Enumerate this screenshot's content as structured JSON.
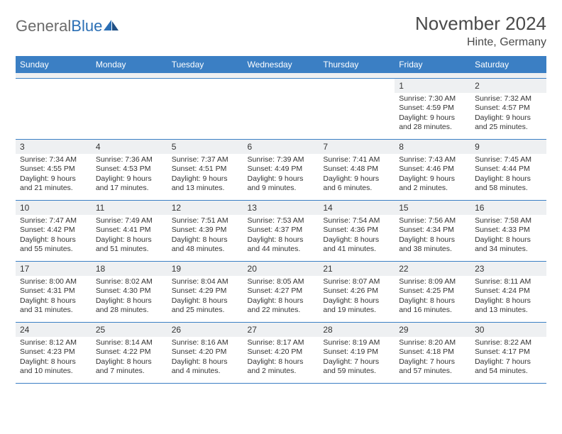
{
  "logo": {
    "textGray": "General",
    "textBlue": "Blue"
  },
  "title": "November 2024",
  "location": "Hinte, Germany",
  "colors": {
    "headerBg": "#3b7fc4",
    "headerText": "#ffffff",
    "dayNumBg": "#eef0f2",
    "borderColor": "#3b7fc4",
    "bodyText": "#333333",
    "logoGray": "#6b6b6b",
    "logoBlue": "#2b6fb5",
    "titleColor": "#4a4a4a"
  },
  "fonts": {
    "title_fontsize": 26,
    "location_fontsize": 16,
    "header_fontsize": 12,
    "daynum_fontsize": 12,
    "content_fontsize": 10.5
  },
  "dayHeaders": [
    "Sunday",
    "Monday",
    "Tuesday",
    "Wednesday",
    "Thursday",
    "Friday",
    "Saturday"
  ],
  "weeks": [
    [
      {
        "n": "",
        "sr": "",
        "ss": "",
        "dl": ""
      },
      {
        "n": "",
        "sr": "",
        "ss": "",
        "dl": ""
      },
      {
        "n": "",
        "sr": "",
        "ss": "",
        "dl": ""
      },
      {
        "n": "",
        "sr": "",
        "ss": "",
        "dl": ""
      },
      {
        "n": "",
        "sr": "",
        "ss": "",
        "dl": ""
      },
      {
        "n": "1",
        "sr": "Sunrise: 7:30 AM",
        "ss": "Sunset: 4:59 PM",
        "dl": "Daylight: 9 hours and 28 minutes."
      },
      {
        "n": "2",
        "sr": "Sunrise: 7:32 AM",
        "ss": "Sunset: 4:57 PM",
        "dl": "Daylight: 9 hours and 25 minutes."
      }
    ],
    [
      {
        "n": "3",
        "sr": "Sunrise: 7:34 AM",
        "ss": "Sunset: 4:55 PM",
        "dl": "Daylight: 9 hours and 21 minutes."
      },
      {
        "n": "4",
        "sr": "Sunrise: 7:36 AM",
        "ss": "Sunset: 4:53 PM",
        "dl": "Daylight: 9 hours and 17 minutes."
      },
      {
        "n": "5",
        "sr": "Sunrise: 7:37 AM",
        "ss": "Sunset: 4:51 PM",
        "dl": "Daylight: 9 hours and 13 minutes."
      },
      {
        "n": "6",
        "sr": "Sunrise: 7:39 AM",
        "ss": "Sunset: 4:49 PM",
        "dl": "Daylight: 9 hours and 9 minutes."
      },
      {
        "n": "7",
        "sr": "Sunrise: 7:41 AM",
        "ss": "Sunset: 4:48 PM",
        "dl": "Daylight: 9 hours and 6 minutes."
      },
      {
        "n": "8",
        "sr": "Sunrise: 7:43 AM",
        "ss": "Sunset: 4:46 PM",
        "dl": "Daylight: 9 hours and 2 minutes."
      },
      {
        "n": "9",
        "sr": "Sunrise: 7:45 AM",
        "ss": "Sunset: 4:44 PM",
        "dl": "Daylight: 8 hours and 58 minutes."
      }
    ],
    [
      {
        "n": "10",
        "sr": "Sunrise: 7:47 AM",
        "ss": "Sunset: 4:42 PM",
        "dl": "Daylight: 8 hours and 55 minutes."
      },
      {
        "n": "11",
        "sr": "Sunrise: 7:49 AM",
        "ss": "Sunset: 4:41 PM",
        "dl": "Daylight: 8 hours and 51 minutes."
      },
      {
        "n": "12",
        "sr": "Sunrise: 7:51 AM",
        "ss": "Sunset: 4:39 PM",
        "dl": "Daylight: 8 hours and 48 minutes."
      },
      {
        "n": "13",
        "sr": "Sunrise: 7:53 AM",
        "ss": "Sunset: 4:37 PM",
        "dl": "Daylight: 8 hours and 44 minutes."
      },
      {
        "n": "14",
        "sr": "Sunrise: 7:54 AM",
        "ss": "Sunset: 4:36 PM",
        "dl": "Daylight: 8 hours and 41 minutes."
      },
      {
        "n": "15",
        "sr": "Sunrise: 7:56 AM",
        "ss": "Sunset: 4:34 PM",
        "dl": "Daylight: 8 hours and 38 minutes."
      },
      {
        "n": "16",
        "sr": "Sunrise: 7:58 AM",
        "ss": "Sunset: 4:33 PM",
        "dl": "Daylight: 8 hours and 34 minutes."
      }
    ],
    [
      {
        "n": "17",
        "sr": "Sunrise: 8:00 AM",
        "ss": "Sunset: 4:31 PM",
        "dl": "Daylight: 8 hours and 31 minutes."
      },
      {
        "n": "18",
        "sr": "Sunrise: 8:02 AM",
        "ss": "Sunset: 4:30 PM",
        "dl": "Daylight: 8 hours and 28 minutes."
      },
      {
        "n": "19",
        "sr": "Sunrise: 8:04 AM",
        "ss": "Sunset: 4:29 PM",
        "dl": "Daylight: 8 hours and 25 minutes."
      },
      {
        "n": "20",
        "sr": "Sunrise: 8:05 AM",
        "ss": "Sunset: 4:27 PM",
        "dl": "Daylight: 8 hours and 22 minutes."
      },
      {
        "n": "21",
        "sr": "Sunrise: 8:07 AM",
        "ss": "Sunset: 4:26 PM",
        "dl": "Daylight: 8 hours and 19 minutes."
      },
      {
        "n": "22",
        "sr": "Sunrise: 8:09 AM",
        "ss": "Sunset: 4:25 PM",
        "dl": "Daylight: 8 hours and 16 minutes."
      },
      {
        "n": "23",
        "sr": "Sunrise: 8:11 AM",
        "ss": "Sunset: 4:24 PM",
        "dl": "Daylight: 8 hours and 13 minutes."
      }
    ],
    [
      {
        "n": "24",
        "sr": "Sunrise: 8:12 AM",
        "ss": "Sunset: 4:23 PM",
        "dl": "Daylight: 8 hours and 10 minutes."
      },
      {
        "n": "25",
        "sr": "Sunrise: 8:14 AM",
        "ss": "Sunset: 4:22 PM",
        "dl": "Daylight: 8 hours and 7 minutes."
      },
      {
        "n": "26",
        "sr": "Sunrise: 8:16 AM",
        "ss": "Sunset: 4:20 PM",
        "dl": "Daylight: 8 hours and 4 minutes."
      },
      {
        "n": "27",
        "sr": "Sunrise: 8:17 AM",
        "ss": "Sunset: 4:20 PM",
        "dl": "Daylight: 8 hours and 2 minutes."
      },
      {
        "n": "28",
        "sr": "Sunrise: 8:19 AM",
        "ss": "Sunset: 4:19 PM",
        "dl": "Daylight: 7 hours and 59 minutes."
      },
      {
        "n": "29",
        "sr": "Sunrise: 8:20 AM",
        "ss": "Sunset: 4:18 PM",
        "dl": "Daylight: 7 hours and 57 minutes."
      },
      {
        "n": "30",
        "sr": "Sunrise: 8:22 AM",
        "ss": "Sunset: 4:17 PM",
        "dl": "Daylight: 7 hours and 54 minutes."
      }
    ]
  ]
}
